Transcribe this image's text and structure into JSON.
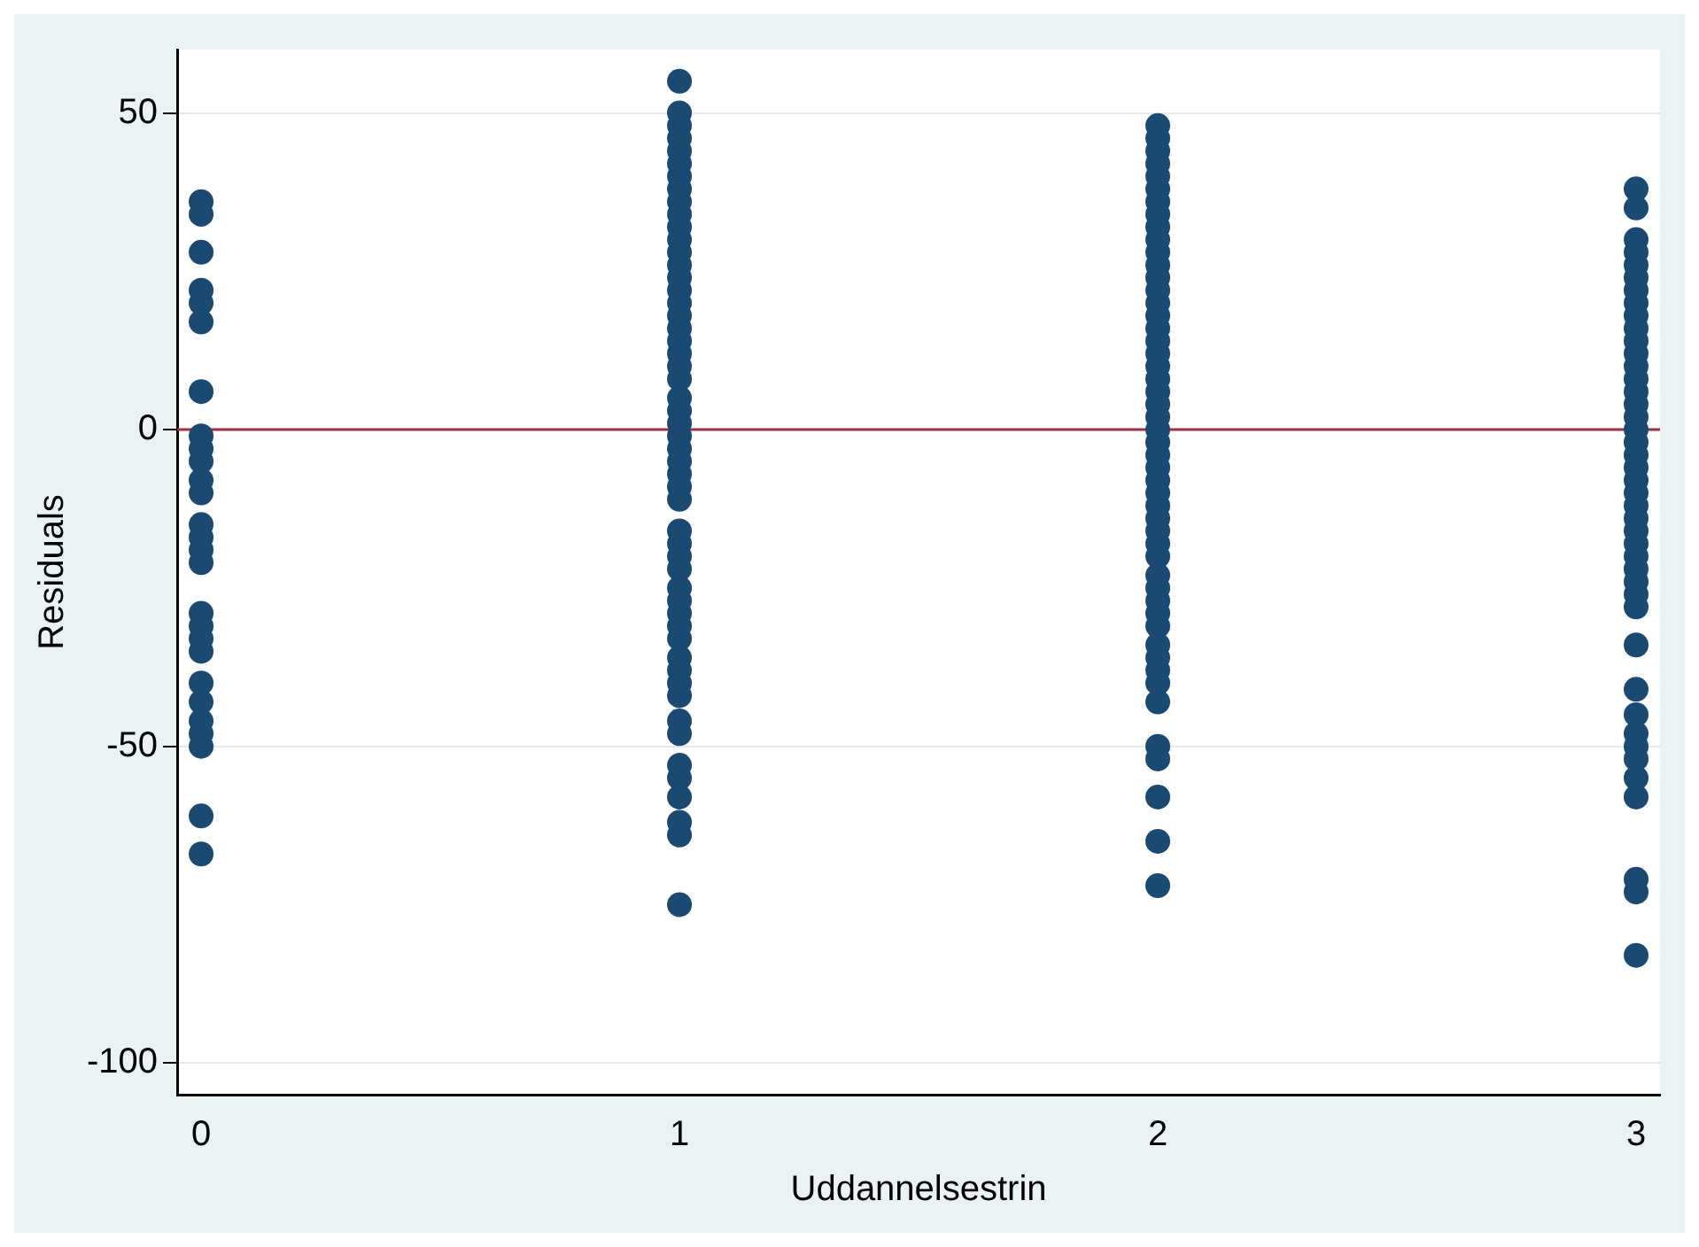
{
  "chart_data": {
    "type": "scatter",
    "xlabel": "Uddannelsestrin",
    "ylabel": "Residuals",
    "xlim": [
      -0.05,
      3.05
    ],
    "xticks": [
      0,
      1,
      2,
      3
    ],
    "ylim": [
      -105,
      60
    ],
    "yticks": [
      -100,
      -50,
      0,
      50
    ],
    "grid": "y",
    "legend": false,
    "marker": "circle",
    "ref_lines": [
      {
        "axis": "y",
        "value": 0,
        "color": "#a0303c"
      }
    ],
    "series": [
      {
        "color": "#1a4a72",
        "x": [
          0,
          0,
          0,
          0,
          0,
          0,
          0,
          0,
          0,
          0,
          0,
          0,
          0,
          0,
          0,
          0,
          0,
          0,
          0,
          0,
          0,
          0,
          0,
          0,
          0,
          0,
          0
        ],
        "values": [
          36,
          34,
          28,
          22,
          20,
          17,
          6,
          -1,
          -3,
          -5,
          -8,
          -10,
          -15,
          -17,
          -19,
          -21,
          -29,
          -31,
          -33,
          -35,
          -40,
          -43,
          -46,
          -48,
          -50,
          -61,
          -67
        ]
      },
      {
        "color": "#1a4a72",
        "x": [
          1,
          1,
          1,
          1,
          1,
          1,
          1,
          1,
          1,
          1,
          1,
          1,
          1,
          1,
          1,
          1,
          1,
          1,
          1,
          1,
          1,
          1,
          1,
          1,
          1,
          1,
          1,
          1,
          1,
          1,
          1,
          1,
          1,
          1,
          1,
          1,
          1,
          1,
          1,
          1,
          1,
          1,
          1,
          1,
          1,
          1,
          1,
          1,
          1,
          1,
          1,
          1,
          1
        ],
        "values": [
          55,
          50,
          48,
          46,
          44,
          42,
          40,
          38,
          36,
          34,
          32,
          30,
          28,
          26,
          24,
          22,
          20,
          18,
          16,
          14,
          12,
          10,
          8,
          5,
          3,
          1,
          -1,
          -3,
          -5,
          -7,
          -9,
          -11,
          -16,
          -18,
          -20,
          -22,
          -25,
          -27,
          -29,
          -31,
          -33,
          -36,
          -38,
          -40,
          -42,
          -46,
          -48,
          -53,
          -55,
          -58,
          -62,
          -64,
          -75
        ]
      },
      {
        "color": "#1a4a72",
        "x": [
          2,
          2,
          2,
          2,
          2,
          2,
          2,
          2,
          2,
          2,
          2,
          2,
          2,
          2,
          2,
          2,
          2,
          2,
          2,
          2,
          2,
          2,
          2,
          2,
          2,
          2,
          2,
          2,
          2,
          2,
          2,
          2,
          2,
          2,
          2,
          2,
          2,
          2,
          2,
          2,
          2,
          2,
          2,
          2,
          2,
          2,
          2,
          2,
          2,
          2
        ],
        "values": [
          48,
          46,
          44,
          42,
          40,
          38,
          36,
          34,
          32,
          30,
          28,
          26,
          24,
          22,
          20,
          18,
          16,
          14,
          12,
          10,
          8,
          6,
          4,
          2,
          0,
          -2,
          -4,
          -6,
          -8,
          -10,
          -12,
          -14,
          -16,
          -18,
          -20,
          -23,
          -25,
          -27,
          -29,
          -31,
          -34,
          -36,
          -38,
          -40,
          -43,
          -50,
          -52,
          -58,
          -65,
          -72
        ]
      },
      {
        "color": "#1a4a72",
        "x": [
          3,
          3,
          3,
          3,
          3,
          3,
          3,
          3,
          3,
          3,
          3,
          3,
          3,
          3,
          3,
          3,
          3,
          3,
          3,
          3,
          3,
          3,
          3,
          3,
          3,
          3,
          3,
          3,
          3,
          3,
          3,
          3,
          3,
          3,
          3,
          3,
          3,
          3,
          3,
          3,
          3,
          3,
          3
        ],
        "values": [
          38,
          35,
          30,
          28,
          26,
          24,
          22,
          20,
          18,
          16,
          14,
          12,
          10,
          8,
          6,
          4,
          2,
          0,
          -2,
          -4,
          -6,
          -8,
          -10,
          -12,
          -14,
          -16,
          -18,
          -20,
          -22,
          -24,
          -26,
          -28,
          -34,
          -41,
          -45,
          -48,
          -50,
          -52,
          -55,
          -58,
          -71,
          -73,
          -83
        ]
      }
    ]
  }
}
